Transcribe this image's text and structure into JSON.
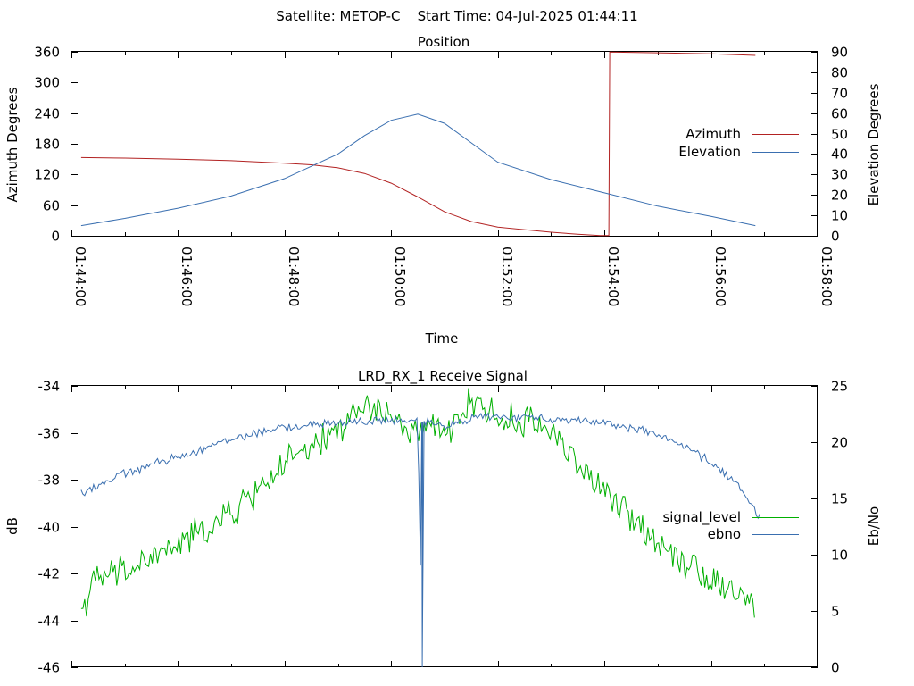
{
  "figure": {
    "title": "Satellite: METOP-C    Start Time: 04-Jul-2025 01:44:11"
  },
  "chart_data": [
    {
      "type": "line",
      "title": "Position",
      "xlabel": "Time",
      "ylabel": "Azimuth Degrees",
      "y2label": "Elevation Degrees",
      "xlim": [
        "01:44:00",
        "01:58:00"
      ],
      "ylim": [
        0,
        360
      ],
      "y2lim": [
        0,
        90
      ],
      "x_ticks": [
        "01:44:00",
        "01:46:00",
        "01:48:00",
        "01:50:00",
        "01:52:00",
        "01:54:00",
        "01:56:00",
        "01:58:00"
      ],
      "y_ticks": [
        "0",
        "60",
        "120",
        "180",
        "240",
        "300",
        "360"
      ],
      "y2_ticks": [
        "0",
        "10",
        "20",
        "30",
        "40",
        "50",
        "60",
        "70",
        "80",
        "90"
      ],
      "legend_position": "right",
      "grid": false,
      "series": [
        {
          "name": "Azimuth",
          "axis": "left",
          "color": "#b22222",
          "x": [
            "01:44:11",
            "01:45:00",
            "01:46:00",
            "01:47:00",
            "01:48:00",
            "01:48:30",
            "01:49:00",
            "01:49:30",
            "01:50:00",
            "01:50:30",
            "01:51:00",
            "01:51:30",
            "01:52:00",
            "01:53:00",
            "01:53:30",
            "01:53:55",
            "01:54:05",
            "01:54:06",
            "01:55:00",
            "01:56:00",
            "01:56:50"
          ],
          "values": [
            153,
            152,
            150,
            147,
            142,
            139,
            133,
            122,
            103,
            76,
            47,
            28,
            17,
            7,
            3,
            0.5,
            0.5,
            359.5,
            358,
            356,
            353
          ]
        },
        {
          "name": "Elevation",
          "axis": "right",
          "color": "#3a6fb0",
          "x": [
            "01:44:11",
            "01:45:00",
            "01:46:00",
            "01:47:00",
            "01:48:00",
            "01:49:00",
            "01:49:30",
            "01:50:00",
            "01:50:30",
            "01:51:00",
            "01:51:30",
            "01:52:00",
            "01:53:00",
            "01:54:00",
            "01:55:00",
            "01:56:00",
            "01:56:50"
          ],
          "values": [
            5,
            8.5,
            13.5,
            19.5,
            28,
            40,
            49,
            56.5,
            59.5,
            55,
            45.5,
            36,
            27.5,
            21,
            14.5,
            9.5,
            5
          ]
        }
      ]
    },
    {
      "type": "line",
      "title": "LRD_RX_1 Receive Signal",
      "xlabel": "",
      "ylabel": "dB",
      "y2label": "Eb/No",
      "xlim": [
        "01:44:00",
        "01:58:00"
      ],
      "ylim": [
        -46,
        -34
      ],
      "y2lim": [
        0,
        25
      ],
      "y_ticks": [
        "-34",
        "-36",
        "-38",
        "-40",
        "-42",
        "-44",
        "-46"
      ],
      "y2_ticks": [
        "0",
        "5",
        "10",
        "15",
        "20",
        "25"
      ],
      "legend_position": "right",
      "grid": false,
      "series": [
        {
          "name": "signal_level",
          "axis": "left",
          "color": "#00b000",
          "noise_db": 0.55,
          "x": [
            "01:44:11",
            "01:44:30",
            "01:45:00",
            "01:46:00",
            "01:47:00",
            "01:48:00",
            "01:48:30",
            "01:49:00",
            "01:49:30",
            "01:50:00",
            "01:50:20",
            "01:50:40",
            "01:51:00",
            "01:51:20",
            "01:51:40",
            "01:52:00",
            "01:52:30",
            "01:53:00",
            "01:53:30",
            "01:54:00",
            "01:55:00",
            "01:56:00",
            "01:56:50"
          ],
          "values": [
            -43.5,
            -42.2,
            -41.9,
            -40.8,
            -39.5,
            -37.3,
            -36.8,
            -35.8,
            -34.9,
            -35.2,
            -36.2,
            -35.6,
            -36.3,
            -35.0,
            -34.6,
            -35.5,
            -35.5,
            -35.8,
            -37.3,
            -38.6,
            -40.6,
            -42.2,
            -43.3
          ]
        },
        {
          "name": "ebno",
          "axis": "right",
          "color": "#3a6fb0",
          "noise": 0.3,
          "x": [
            "01:44:11",
            "01:45:00",
            "01:46:00",
            "01:47:00",
            "01:48:00",
            "01:49:00",
            "01:49:40",
            "01:50:00",
            "01:50:30",
            "01:50:35",
            "01:50:37",
            "01:50:40",
            "01:51:00",
            "01:51:40",
            "01:52:00",
            "01:53:00",
            "01:54:00",
            "01:55:00",
            "01:56:00",
            "01:56:30",
            "01:56:50",
            "01:56:55"
          ],
          "values": [
            15.5,
            17.2,
            18.7,
            20.3,
            21.3,
            21.7,
            21.9,
            21.9,
            21.8,
            0,
            21.8,
            21.8,
            21.5,
            22.3,
            22.2,
            22.1,
            21.8,
            20.7,
            18.3,
            16.2,
            14,
            13.3
          ]
        }
      ]
    }
  ]
}
